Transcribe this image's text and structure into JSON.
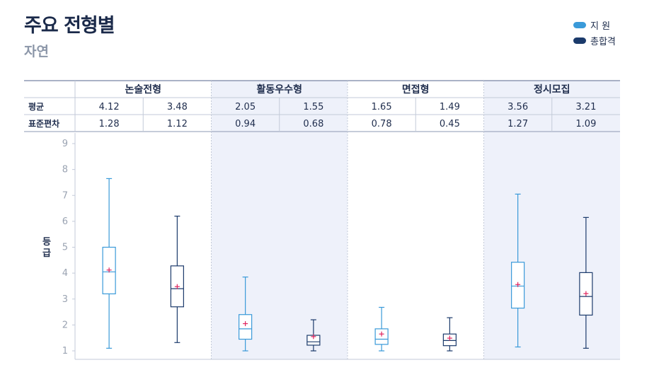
{
  "title": "주요 전형별",
  "subtitle": "자연",
  "legend": [
    {
      "label": "지  원",
      "color": "#3a9ad9"
    },
    {
      "label": "총합격",
      "color": "#1b3a6b"
    }
  ],
  "chart_data": {
    "type": "box",
    "ylabel": "등급",
    "ylim": [
      1,
      9
    ],
    "yticks": [
      "1",
      "2",
      "3",
      "4",
      "5",
      "6",
      "7",
      "8",
      "9"
    ],
    "row_labels": {
      "mean": "평균",
      "sd": "표준편차"
    },
    "groups": [
      {
        "name": "논술전형",
        "shaded": false,
        "boxes": [
          {
            "series": "지  원",
            "mean": "4.12",
            "sd": "1.28",
            "mean_value": 4.12,
            "min": 1.1,
            "q1": 3.2,
            "median": 4.05,
            "q3": 5.0,
            "max": 7.65
          },
          {
            "series": "총합격",
            "mean": "3.48",
            "sd": "1.12",
            "mean_value": 3.48,
            "min": 1.32,
            "q1": 2.7,
            "median": 3.4,
            "q3": 4.28,
            "max": 6.2
          }
        ]
      },
      {
        "name": "활동우수형",
        "shaded": true,
        "boxes": [
          {
            "series": "지  원",
            "mean": "2.05",
            "sd": "0.94",
            "mean_value": 2.05,
            "min": 1.0,
            "q1": 1.45,
            "median": 1.85,
            "q3": 2.4,
            "max": 3.85
          },
          {
            "series": "총합격",
            "mean": "1.55",
            "sd": "0.68",
            "mean_value": 1.55,
            "min": 1.0,
            "q1": 1.22,
            "median": 1.35,
            "q3": 1.6,
            "max": 2.2
          }
        ]
      },
      {
        "name": "면접형",
        "shaded": false,
        "boxes": [
          {
            "series": "지  원",
            "mean": "1.65",
            "sd": "0.78",
            "mean_value": 1.65,
            "min": 1.0,
            "q1": 1.25,
            "median": 1.45,
            "q3": 1.85,
            "max": 2.68
          },
          {
            "series": "총합격",
            "mean": "1.49",
            "sd": "0.45",
            "mean_value": 1.49,
            "min": 1.0,
            "q1": 1.2,
            "median": 1.4,
            "q3": 1.65,
            "max": 2.28
          }
        ]
      },
      {
        "name": "정시모집",
        "shaded": true,
        "boxes": [
          {
            "series": "지  원",
            "mean": "3.56",
            "sd": "1.27",
            "mean_value": 3.56,
            "min": 1.15,
            "q1": 2.65,
            "median": 3.5,
            "q3": 4.42,
            "max": 7.05
          },
          {
            "series": "총합격",
            "mean": "3.21",
            "sd": "1.09",
            "mean_value": 3.21,
            "min": 1.1,
            "q1": 2.38,
            "median": 3.1,
            "q3": 4.02,
            "max": 6.15
          }
        ]
      }
    ],
    "colors": {
      "지  원": "#3a9ad9",
      "총합격": "#1b3a6b",
      "mean_marker": "#e0245e",
      "shade": "#eef1fa"
    },
    "grid": false,
    "legend_position": "top-right"
  }
}
